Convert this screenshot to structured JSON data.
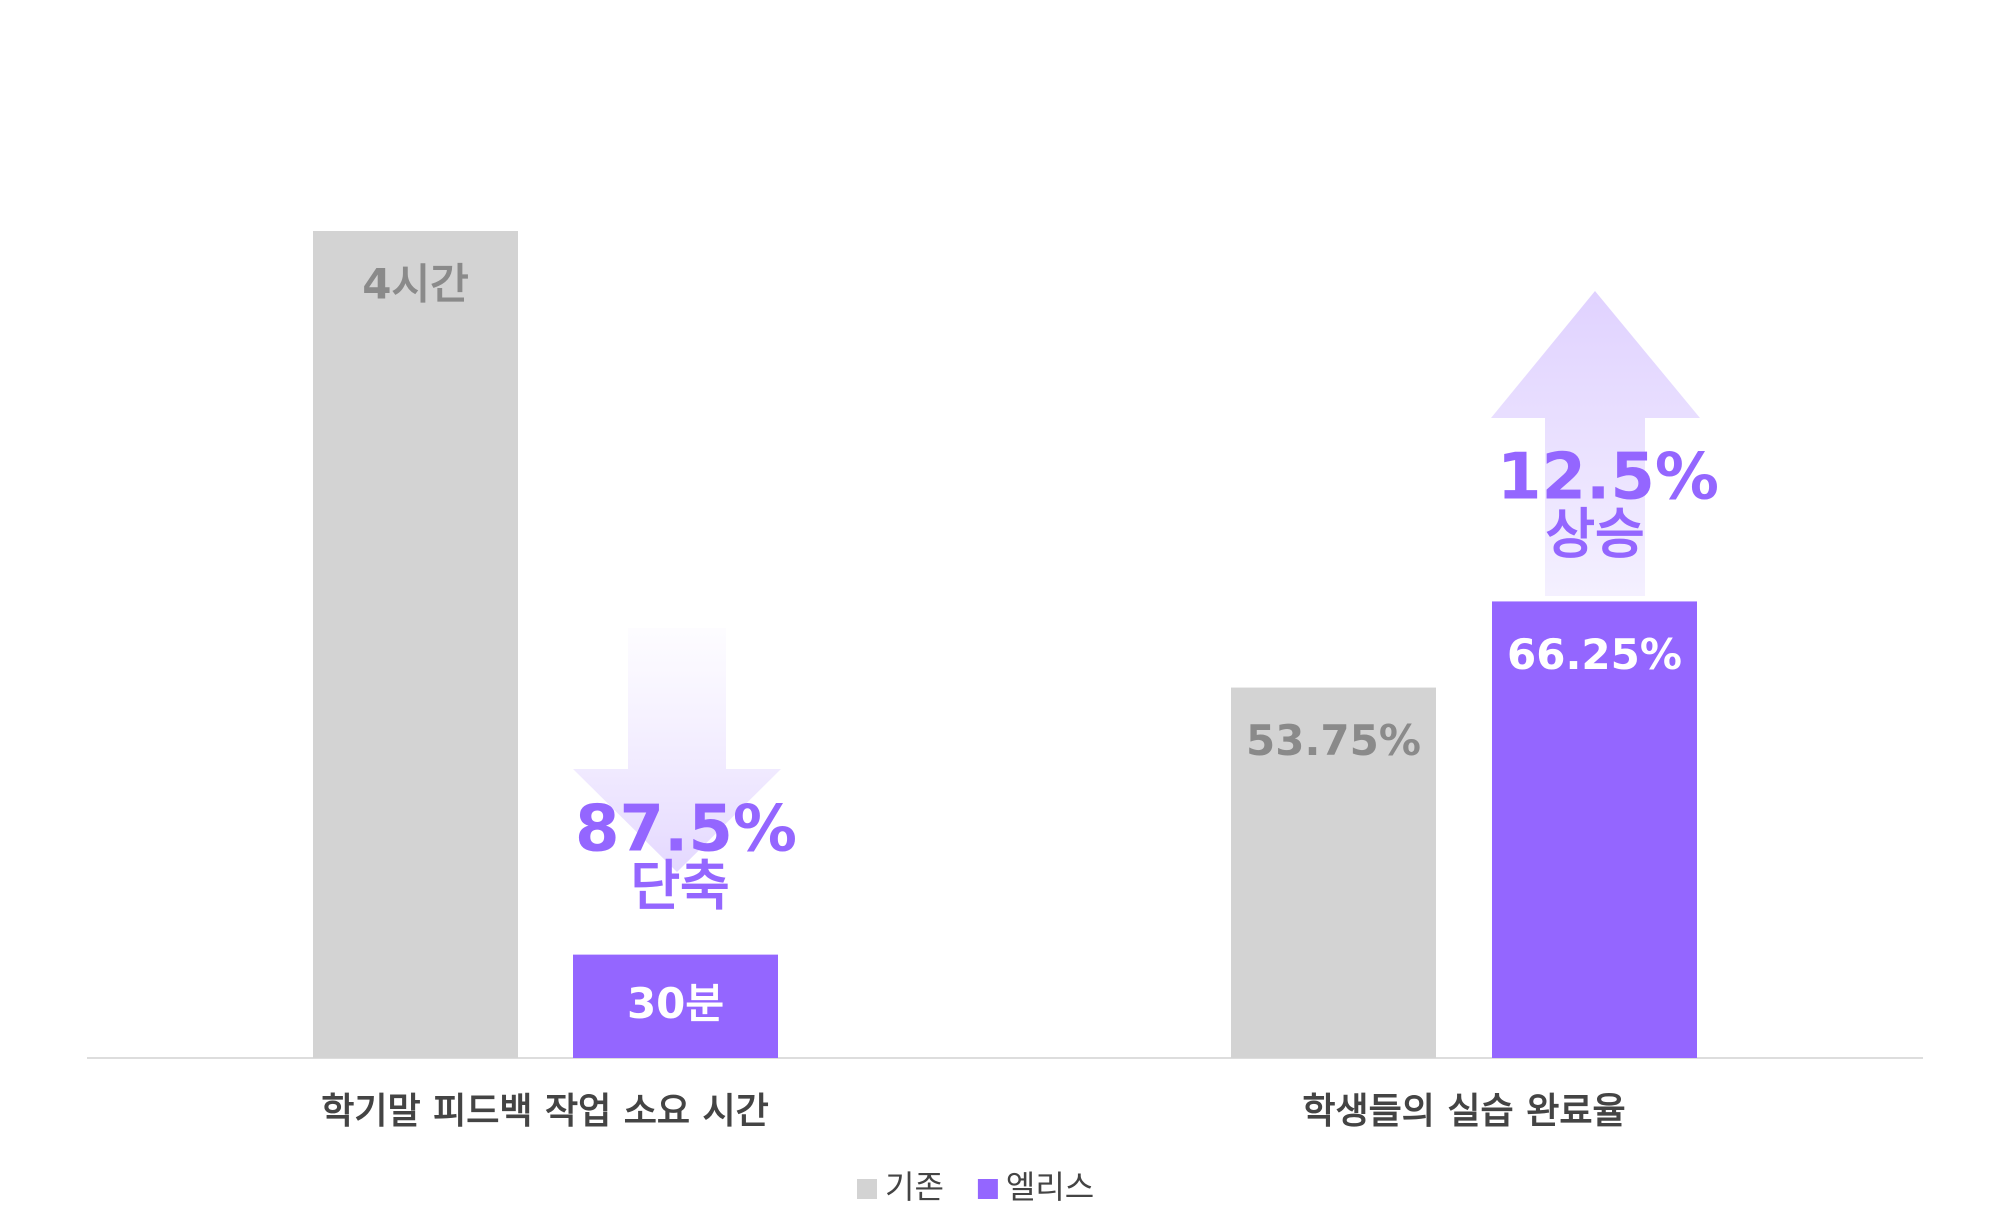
{
  "chart_data": [
    {
      "type": "bar",
      "categories": [
        "학기말 피드백 작업 소요 시간"
      ],
      "ylim": [
        0,
        4
      ],
      "series": [
        {
          "name": "기존",
          "color": "#d3d3d3",
          "values": [
            4
          ],
          "value_labels": [
            "4시간"
          ]
        },
        {
          "name": "엘리스",
          "color": "#9466ff",
          "values": [
            0.5
          ],
          "value_labels": [
            "30분"
          ]
        }
      ],
      "annotations": [
        "87.5%",
        "단축"
      ]
    },
    {
      "type": "bar",
      "categories": [
        "학생들의 실습 완료율"
      ],
      "ylim": [
        0,
        120
      ],
      "series": [
        {
          "color": "#d3d3d3",
          "values": [
            53.75
          ],
          "value_labels": [
            "53.75%"
          ]
        },
        {
          "color": "#9466ff",
          "values": [
            66.25
          ],
          "value_labels": [
            "66.25%"
          ]
        }
      ],
      "annotations": [
        "12.5%",
        "상승"
      ]
    }
  ]
}
